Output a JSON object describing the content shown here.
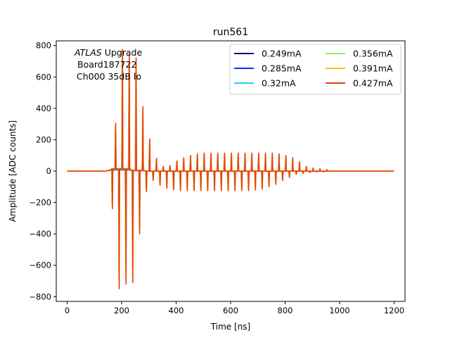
{
  "chart_data": {
    "type": "line",
    "title": "run561",
    "xlabel": "Time [ns]",
    "ylabel": "Amplitude [ADC counts]",
    "xlim": [
      -40,
      1240
    ],
    "ylim": [
      -830,
      830
    ],
    "xticks": [
      0,
      200,
      400,
      600,
      800,
      1000,
      1200
    ],
    "yticks": [
      -800,
      -600,
      -400,
      -200,
      0,
      200,
      400,
      600,
      800
    ],
    "grid": false,
    "legend_placement": "top-right",
    "legend_columns": 2,
    "annotation": {
      "line1_italic": "ATLAS",
      "line1_rest": " Upgrade",
      "line2": "Board187722",
      "line3": "Ch000 35dB lo"
    },
    "pulse_train": {
      "x_start": 0,
      "x_end": 1200,
      "baseline": 0,
      "first_pulse_time": 165,
      "pulse_spacing_ns": 25,
      "pulse_count": 32
    },
    "series": [
      {
        "name": "0.249mA",
        "color": "#00007f",
        "peak_scale": 0.55
      },
      {
        "name": "0.285mA",
        "color": "#0033ff",
        "peak_scale": 0.68
      },
      {
        "name": "0.32mA",
        "color": "#1ad4f0",
        "peak_scale": 0.78
      },
      {
        "name": "0.356mA",
        "color": "#8ff06b",
        "peak_scale": 0.87
      },
      {
        "name": "0.391mA",
        "color": "#ffc000",
        "peak_scale": 0.94
      },
      {
        "name": "0.427mA",
        "color": "#f03a0c",
        "peak_scale": 1.0
      }
    ],
    "reference_series_peaks": {
      "positive": [
        305,
        775,
        740,
        720,
        410,
        205,
        80,
        30,
        35,
        65,
        85,
        100,
        110,
        115,
        115,
        115,
        115,
        115,
        115,
        115,
        115,
        115,
        115,
        115,
        110,
        100,
        85,
        60,
        30,
        20,
        15,
        10
      ],
      "negative": [
        -240,
        -750,
        -720,
        -710,
        -400,
        -130,
        -60,
        -90,
        -110,
        -120,
        -125,
        -125,
        -125,
        -125,
        -125,
        -125,
        -125,
        -125,
        -125,
        -125,
        -125,
        -120,
        -115,
        -100,
        -85,
        -60,
        -40,
        -20,
        -15,
        -10,
        -5,
        -5
      ]
    }
  }
}
